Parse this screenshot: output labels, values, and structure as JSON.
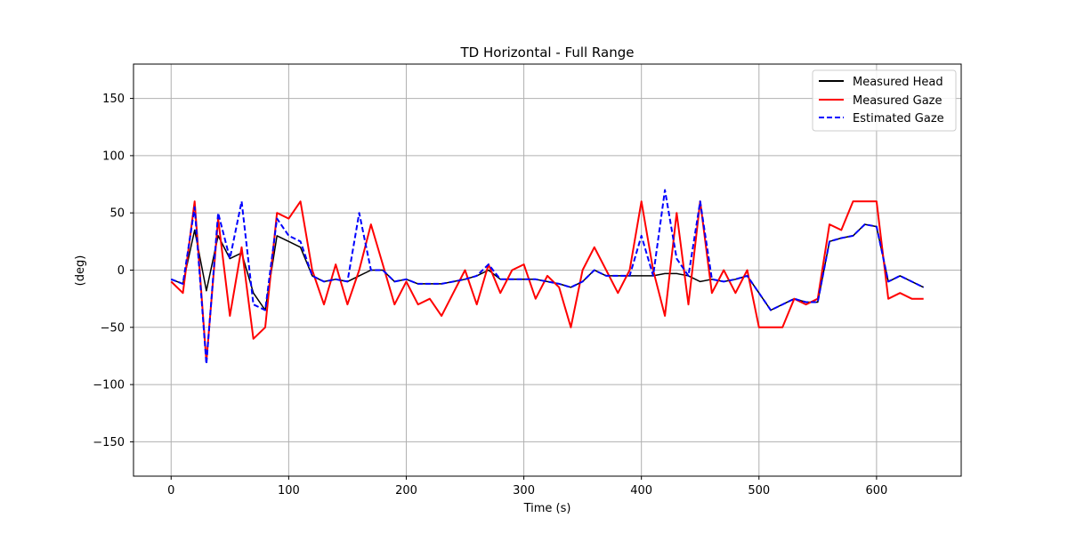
{
  "chart_data": {
    "type": "line",
    "title": "TD Horizontal - Full Range",
    "xlabel": "Time (s)",
    "ylabel": "(deg)",
    "xlim": [
      -32,
      672
    ],
    "ylim": [
      -180,
      180
    ],
    "xticks": [
      0,
      100,
      200,
      300,
      400,
      500,
      600
    ],
    "yticks": [
      -150,
      -100,
      -50,
      0,
      50,
      100,
      150
    ],
    "grid": true,
    "legend_position": "top-right",
    "series": [
      {
        "name": "Measured Head",
        "color": "#000000",
        "style": "solid",
        "x": [
          0,
          10,
          20,
          30,
          40,
          50,
          60,
          70,
          80,
          90,
          100,
          110,
          120,
          130,
          140,
          150,
          160,
          170,
          180,
          190,
          200,
          210,
          220,
          230,
          240,
          250,
          260,
          270,
          280,
          290,
          300,
          310,
          320,
          330,
          340,
          350,
          360,
          370,
          380,
          390,
          400,
          410,
          420,
          430,
          440,
          450,
          460,
          470,
          480,
          490,
          500,
          510,
          520,
          530,
          540,
          550,
          560,
          570,
          580,
          590,
          600,
          610,
          620,
          630,
          640
        ],
        "y": [
          -8,
          -12,
          35,
          -18,
          30,
          10,
          15,
          -20,
          -35,
          30,
          25,
          20,
          -5,
          -10,
          -8,
          -10,
          -5,
          0,
          0,
          -10,
          -8,
          -12,
          -12,
          -12,
          -10,
          -8,
          -5,
          0,
          -8,
          -8,
          -8,
          -8,
          -10,
          -12,
          -15,
          -10,
          0,
          -5,
          -5,
          -5,
          -5,
          -5,
          -3,
          -3,
          -5,
          -10,
          -8,
          -10,
          -8,
          -5,
          -20,
          -35,
          -30,
          -25,
          -28,
          -28,
          25,
          28,
          30,
          40,
          38,
          -10,
          -5,
          -10,
          -15
        ]
      },
      {
        "name": "Measured Gaze",
        "color": "#ff0000",
        "style": "solid",
        "x": [
          0,
          10,
          20,
          30,
          40,
          50,
          60,
          70,
          80,
          90,
          100,
          110,
          120,
          130,
          140,
          150,
          160,
          170,
          180,
          190,
          200,
          210,
          220,
          230,
          240,
          250,
          260,
          270,
          280,
          290,
          300,
          310,
          320,
          330,
          340,
          350,
          360,
          370,
          380,
          390,
          400,
          410,
          420,
          430,
          440,
          450,
          460,
          470,
          480,
          490,
          500,
          510,
          520,
          530,
          540,
          550,
          560,
          570,
          580,
          590,
          600,
          610,
          620,
          630,
          640
        ],
        "y": [
          -10,
          -20,
          60,
          -80,
          45,
          -40,
          20,
          -60,
          -50,
          50,
          45,
          60,
          0,
          -30,
          5,
          -30,
          0,
          40,
          5,
          -30,
          -10,
          -30,
          -25,
          -40,
          -20,
          0,
          -30,
          5,
          -20,
          0,
          5,
          -25,
          -5,
          -15,
          -50,
          0,
          20,
          0,
          -20,
          0,
          60,
          0,
          -40,
          50,
          -30,
          60,
          -20,
          0,
          -20,
          0,
          -50,
          -50,
          -50,
          -25,
          -30,
          -25,
          40,
          35,
          60,
          60,
          60,
          -25,
          -20,
          -25,
          -25
        ]
      },
      {
        "name": "Estimated Gaze",
        "color": "#0000ff",
        "style": "dashed",
        "x": [
          0,
          10,
          20,
          30,
          40,
          50,
          60,
          70,
          80,
          90,
          100,
          110,
          120,
          130,
          140,
          150,
          160,
          170,
          180,
          190,
          200,
          210,
          220,
          230,
          240,
          250,
          260,
          270,
          280,
          290,
          300,
          310,
          320,
          330,
          340,
          350,
          360,
          370,
          380,
          390,
          400,
          410,
          420,
          430,
          440,
          450,
          460,
          470,
          480,
          490,
          500,
          510,
          520,
          530,
          540,
          550,
          560,
          570,
          580,
          590,
          600,
          610,
          620,
          630,
          640
        ],
        "y": [
          -8,
          -12,
          55,
          -82,
          50,
          10,
          60,
          -30,
          -35,
          45,
          30,
          25,
          -5,
          -10,
          -8,
          -10,
          50,
          0,
          0,
          -10,
          -8,
          -12,
          -12,
          -12,
          -10,
          -8,
          -5,
          5,
          -8,
          -8,
          -8,
          -8,
          -10,
          -12,
          -15,
          -10,
          0,
          -5,
          -5,
          -5,
          30,
          -5,
          70,
          10,
          -5,
          60,
          -8,
          -10,
          -8,
          -5,
          -20,
          -35,
          -30,
          -25,
          -28,
          -28,
          25,
          28,
          30,
          40,
          38,
          -10,
          -5,
          -10,
          -15
        ]
      }
    ]
  }
}
